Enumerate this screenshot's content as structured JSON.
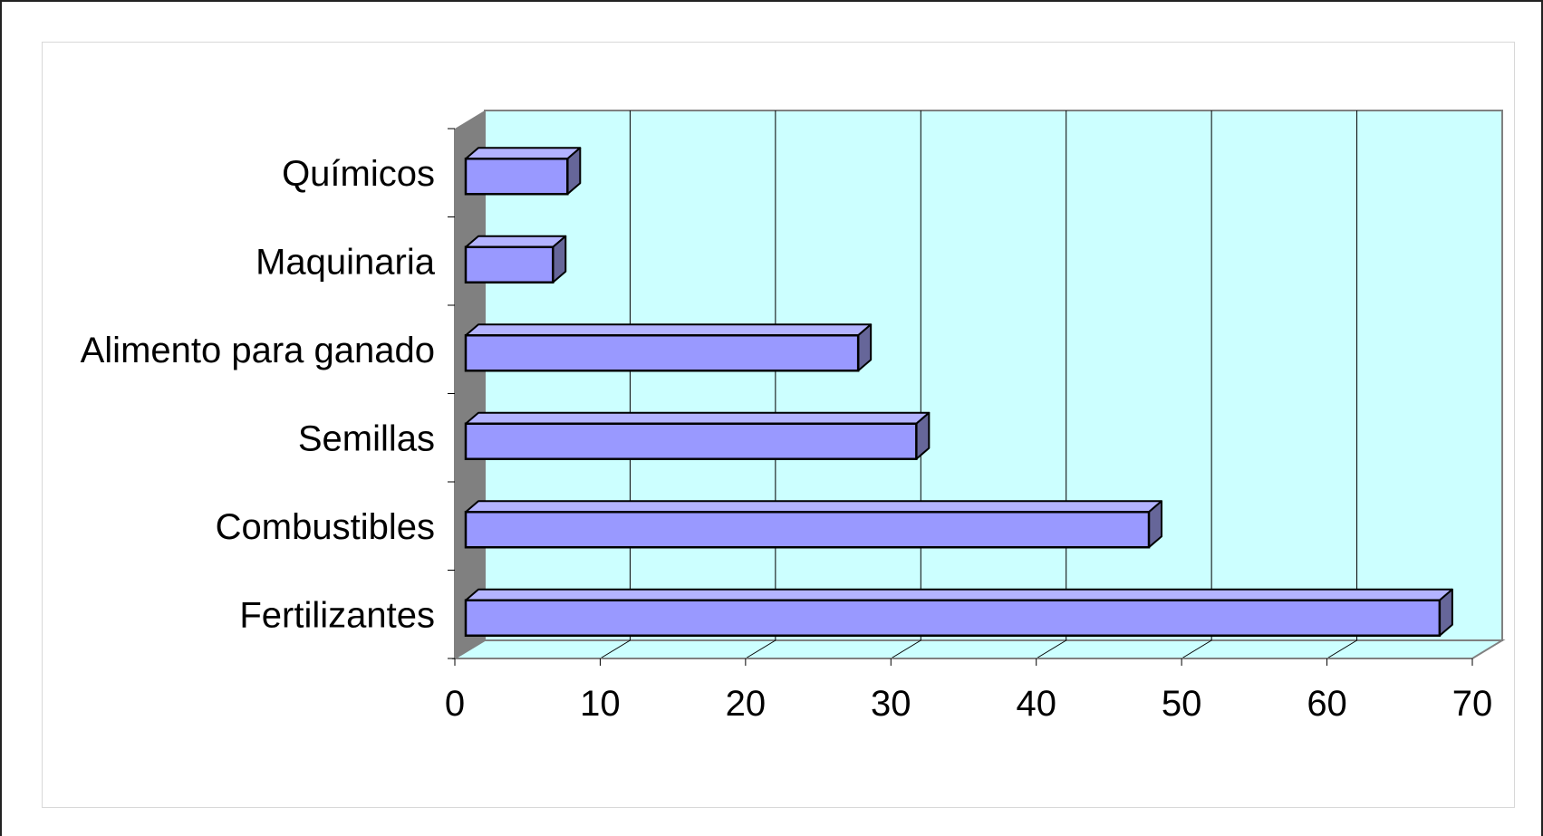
{
  "chart_data": {
    "type": "bar",
    "orientation": "horizontal",
    "style": "3d",
    "categories": [
      "Químicos",
      "Maquinaria",
      "Alimento para ganado",
      "Semillas",
      "Combustibles",
      "Fertilizantes"
    ],
    "values": [
      7,
      6,
      27,
      31,
      47,
      67
    ],
    "xlim": [
      0,
      70
    ],
    "x_ticks": [
      "0",
      "10",
      "20",
      "30",
      "40",
      "50",
      "60",
      "70"
    ],
    "title": "",
    "xlabel": "",
    "ylabel": "",
    "grid": true,
    "legend": false,
    "colors": {
      "bar_front": "#9999ff",
      "bar_top": "#b3b3ff",
      "bar_side": "#666699",
      "back_wall": "#ccffff",
      "side_wall": "#808080",
      "floor": "#ccffff",
      "outline": "#000000"
    }
  }
}
